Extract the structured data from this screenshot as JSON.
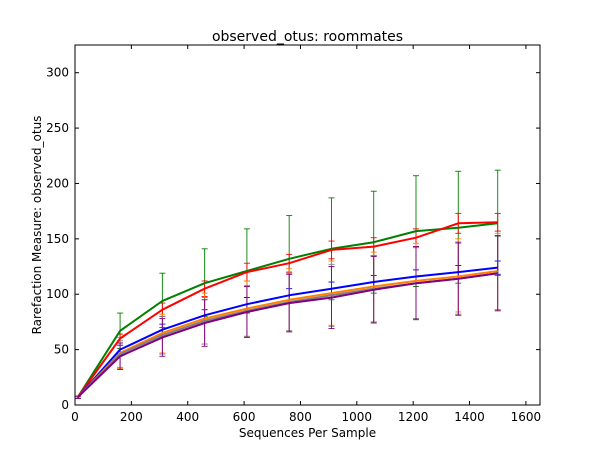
{
  "chart_data": {
    "type": "line",
    "title": "observed_otus: roommates",
    "xlabel": "Sequences Per Sample",
    "ylabel": "Rarefaction Measure: observed_otus",
    "xlim": [
      0,
      1650
    ],
    "ylim": [
      0,
      325
    ],
    "x_ticks": [
      0,
      200,
      400,
      600,
      800,
      1000,
      1200,
      1400,
      1600
    ],
    "y_ticks": [
      0,
      50,
      100,
      150,
      200,
      250,
      300
    ],
    "grid": false,
    "legend": "none",
    "x": [
      10,
      160,
      310,
      460,
      610,
      760,
      910,
      1060,
      1210,
      1360,
      1500
    ],
    "series": [
      {
        "color": "#008000",
        "values": [
          7,
          67,
          94,
          110,
          121,
          132,
          141,
          147,
          157,
          160,
          164
        ],
        "err_low": [
          6,
          51,
          70,
          80,
          83,
          93,
          95,
          101,
          107,
          110,
          117
        ],
        "err_high": [
          8,
          83,
          119,
          141,
          159,
          171,
          187,
          193,
          207,
          211,
          212
        ]
      },
      {
        "color": "#ff0000",
        "values": [
          7,
          60,
          86,
          105,
          120,
          128,
          140,
          143,
          151,
          164,
          165
        ],
        "err_low": [
          6,
          56,
          80,
          98,
          112,
          120,
          132,
          135,
          143,
          155,
          157
        ],
        "err_high": [
          8,
          64,
          92,
          112,
          128,
          136,
          148,
          151,
          159,
          173,
          173
        ]
      },
      {
        "color": "#0000ff",
        "values": [
          7,
          50,
          68,
          81,
          91,
          99,
          105,
          111,
          116,
          120,
          124
        ],
        "err_low": [
          6,
          46,
          63,
          76,
          85,
          93,
          99,
          105,
          110,
          114,
          118
        ],
        "err_high": [
          8,
          54,
          73,
          86,
          97,
          105,
          111,
          117,
          122,
          126,
          130
        ]
      },
      {
        "color": "#ff8000",
        "values": [
          7,
          47,
          65,
          78,
          87,
          95,
          101,
          107,
          112,
          116,
          121
        ],
        "err_low": [
          6,
          33,
          47,
          55,
          62,
          67,
          72,
          75,
          78,
          84,
          86
        ],
        "err_high": [
          8,
          61,
          82,
          101,
          112,
          123,
          130,
          138,
          146,
          150,
          155
        ]
      },
      {
        "color": "#808080",
        "values": [
          7,
          46,
          63,
          76,
          85,
          93,
          99,
          105,
          110,
          114,
          119
        ],
        "err_low": [
          6,
          34,
          46,
          55,
          62,
          67,
          71,
          75,
          78,
          82,
          86
        ],
        "err_high": [
          8,
          58,
          80,
          97,
          108,
          119,
          127,
          135,
          142,
          146,
          152
        ]
      },
      {
        "color": "#800080",
        "values": [
          7,
          44,
          61,
          74,
          84,
          92,
          97,
          104,
          110,
          114,
          119
        ],
        "err_low": [
          6,
          32,
          44,
          53,
          61,
          66,
          69,
          74,
          77,
          81,
          85
        ],
        "err_high": [
          8,
          56,
          78,
          95,
          107,
          118,
          125,
          134,
          143,
          147,
          153
        ]
      }
    ]
  }
}
